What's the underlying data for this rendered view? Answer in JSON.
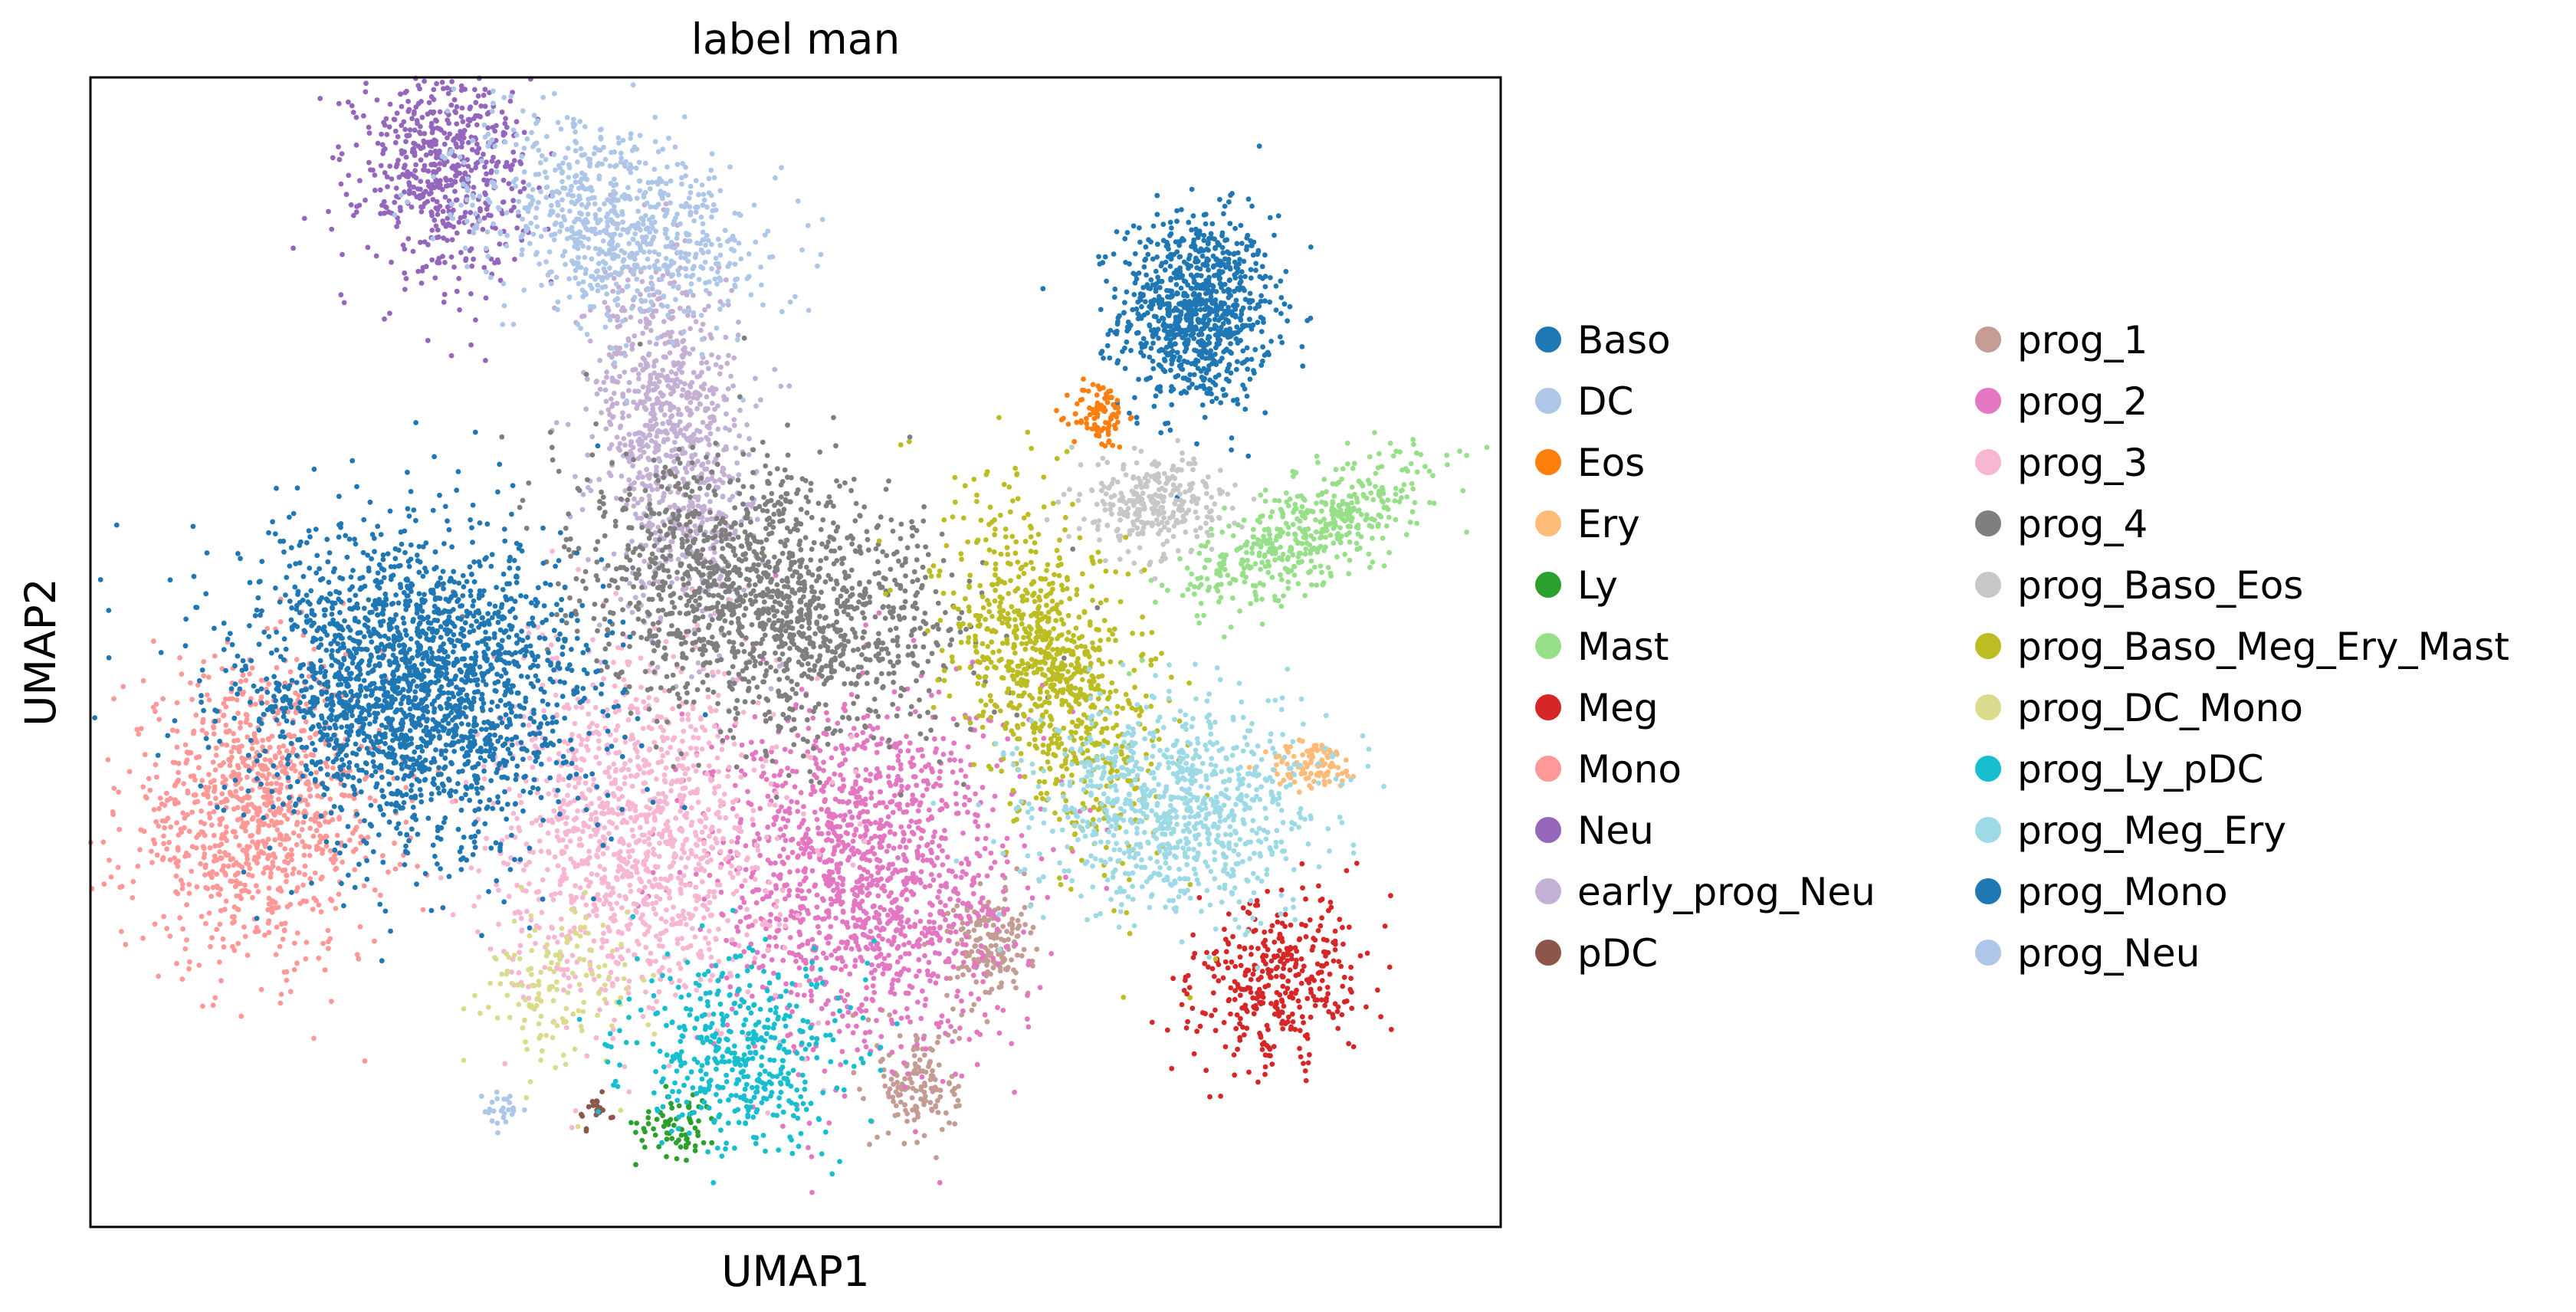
{
  "chart_data": {
    "type": "scatter",
    "title": "label man",
    "xlabel": "UMAP1",
    "ylabel": "UMAP2",
    "xticks": false,
    "yticks": false,
    "grid": false,
    "legend_position": "right",
    "legend_columns": 2,
    "series": [
      {
        "name": "Baso",
        "color": "#1f77b4",
        "clusters": [
          {
            "cx": 7.0,
            "cy": 8.0,
            "sx": 0.55,
            "sy": 0.7,
            "n": 900
          }
        ]
      },
      {
        "name": "DC",
        "color": "#aec7e8",
        "clusters": [
          {
            "cx": -3.0,
            "cy": -3.6,
            "sx": 0.15,
            "sy": 0.15,
            "n": 25
          }
        ]
      },
      {
        "name": "Eos",
        "color": "#ff7f0e",
        "clusters": [
          {
            "cx": 5.6,
            "cy": 6.5,
            "sx": 0.2,
            "sy": 0.25,
            "n": 90
          }
        ]
      },
      {
        "name": "Ery",
        "color": "#ffbb78",
        "clusters": [
          {
            "cx": 8.7,
            "cy": 1.4,
            "sx": 0.35,
            "sy": 0.18,
            "n": 100
          }
        ]
      },
      {
        "name": "Ly",
        "color": "#2ca02c",
        "clusters": [
          {
            "cx": -0.5,
            "cy": -3.8,
            "sx": 0.3,
            "sy": 0.25,
            "n": 70
          }
        ]
      },
      {
        "name": "Mast",
        "color": "#98df8a",
        "clusters": [
          {
            "cx": 8.6,
            "cy": 4.8,
            "sx": 1.0,
            "sy": 0.35,
            "n": 500,
            "rot": 0.45
          }
        ]
      },
      {
        "name": "Meg",
        "color": "#d62728",
        "clusters": [
          {
            "cx": 8.2,
            "cy": -1.7,
            "sx": 0.55,
            "sy": 0.7,
            "n": 380,
            "rot": -0.9
          }
        ]
      },
      {
        "name": "Mono",
        "color": "#ff9896",
        "clusters": [
          {
            "cx": -6.6,
            "cy": 0.7,
            "sx": 0.95,
            "sy": 1.05,
            "n": 1000
          }
        ]
      },
      {
        "name": "Neu",
        "color": "#9467bd",
        "clusters": [
          {
            "cx": -3.9,
            "cy": 10.1,
            "sx": 0.6,
            "sy": 0.8,
            "n": 600
          }
        ]
      },
      {
        "name": "early_prog_Neu",
        "color": "#c5b0d5",
        "clusters": [
          {
            "cx": -0.6,
            "cy": 6.2,
            "sx": 0.55,
            "sy": 1.3,
            "n": 900,
            "rot": 0.15
          }
        ]
      },
      {
        "name": "pDC",
        "color": "#8c564b",
        "clusters": [
          {
            "cx": -1.7,
            "cy": -3.6,
            "sx": 0.12,
            "sy": 0.15,
            "n": 20
          }
        ]
      },
      {
        "name": "prog_1",
        "color": "#c49c94",
        "clusters": [
          {
            "cx": 4.0,
            "cy": -1.2,
            "sx": 0.3,
            "sy": 0.4,
            "n": 180
          },
          {
            "cx": 3.0,
            "cy": -3.2,
            "sx": 0.3,
            "sy": 0.45,
            "n": 150
          }
        ]
      },
      {
        "name": "prog_2",
        "color": "#e377c2",
        "clusters": [
          {
            "cx": 2.2,
            "cy": -0.2,
            "sx": 1.1,
            "sy": 1.3,
            "n": 1400
          }
        ]
      },
      {
        "name": "prog_3",
        "color": "#f7b6d2",
        "clusters": [
          {
            "cx": -1.1,
            "cy": 0.4,
            "sx": 1.0,
            "sy": 1.3,
            "n": 1200
          }
        ]
      },
      {
        "name": "prog_4",
        "color": "#7f7f7f",
        "clusters": [
          {
            "cx": 0.8,
            "cy": 3.8,
            "sx": 1.4,
            "sy": 0.9,
            "n": 1500,
            "rot": -0.35
          }
        ]
      },
      {
        "name": "prog_Baso_Eos",
        "color": "#c7c7c7",
        "clusters": [
          {
            "cx": 6.4,
            "cy": 5.2,
            "sx": 0.5,
            "sy": 0.35,
            "n": 300
          }
        ]
      },
      {
        "name": "prog_Baso_Meg_Ery_Mast",
        "color": "#bcbd22",
        "clusters": [
          {
            "cx": 4.9,
            "cy": 2.8,
            "sx": 0.6,
            "sy": 1.3,
            "n": 900,
            "rot": 0.35
          }
        ]
      },
      {
        "name": "prog_DC_Mono",
        "color": "#dbdb8d",
        "clusters": [
          {
            "cx": -2.2,
            "cy": -1.8,
            "sx": 0.55,
            "sy": 0.6,
            "n": 150
          }
        ]
      },
      {
        "name": "prog_Ly_pDC",
        "color": "#17becf",
        "clusters": [
          {
            "cx": 0.4,
            "cy": -2.8,
            "sx": 0.8,
            "sy": 0.7,
            "n": 450
          }
        ]
      },
      {
        "name": "prog_Meg_Ery",
        "color": "#9edae5",
        "clusters": [
          {
            "cx": 6.7,
            "cy": 0.8,
            "sx": 1.0,
            "sy": 0.75,
            "n": 900
          }
        ]
      },
      {
        "name": "prog_Mono",
        "color": "#1f77b4",
        "clusters": [
          {
            "cx": -4.3,
            "cy": 2.5,
            "sx": 1.25,
            "sy": 1.15,
            "n": 2200
          }
        ]
      },
      {
        "name": "prog_Neu",
        "color": "#aec7e8",
        "clusters": [
          {
            "cx": -1.5,
            "cy": 9.3,
            "sx": 1.1,
            "sy": 0.65,
            "n": 800,
            "rot": -0.35
          }
        ]
      }
    ]
  }
}
